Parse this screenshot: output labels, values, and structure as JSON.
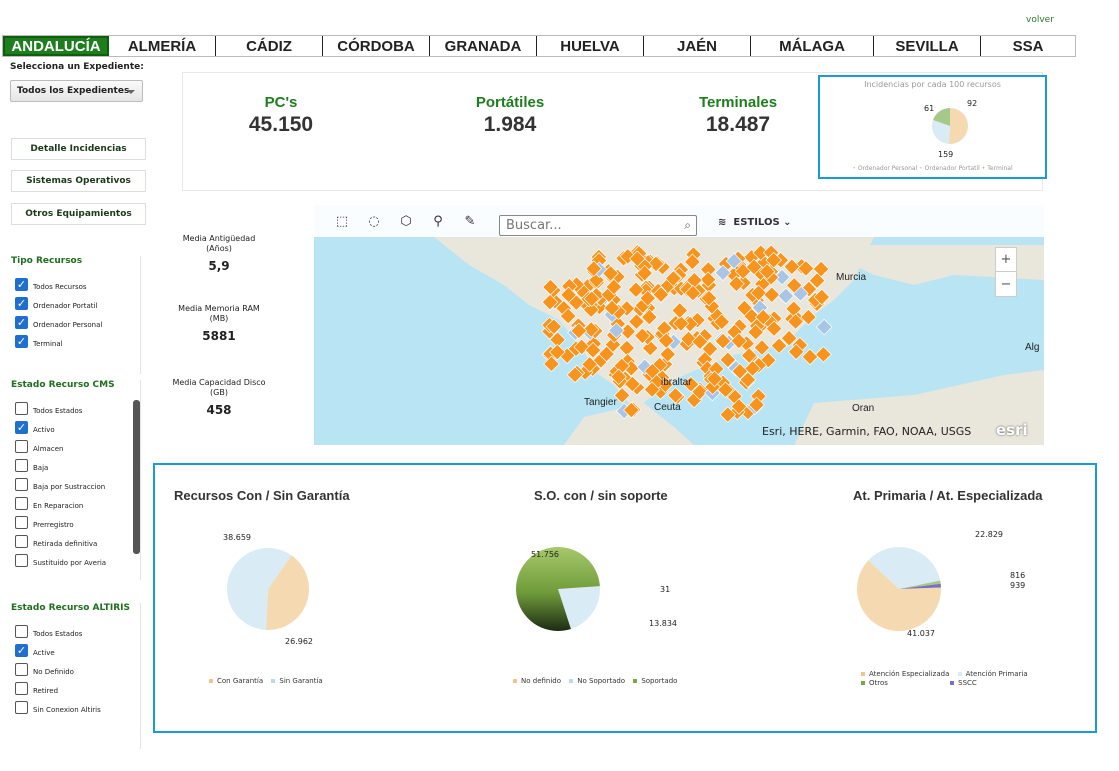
{
  "header": {
    "volver": "volver"
  },
  "tabs": [
    {
      "label": "ANDALUCÍA",
      "active": true
    },
    {
      "label": "ALMERÍA"
    },
    {
      "label": "CÁDIZ"
    },
    {
      "label": "CÓRDOBA"
    },
    {
      "label": "GRANADA"
    },
    {
      "label": "HUELVA"
    },
    {
      "label": "JAÉN"
    },
    {
      "label": "MÁLAGA"
    },
    {
      "label": "SEVILLA"
    },
    {
      "label": "SSA"
    }
  ],
  "sidebar": {
    "expediente_label": "Selecciona un Expediente:",
    "expediente_value": "Todos los Expedientes",
    "buttons": [
      "Detalle Incidencias",
      "Sistemas Operativos",
      "Otros Equipamientos"
    ],
    "tipo_recursos": {
      "title": "Tipo Recursos",
      "options": [
        {
          "label": "Todos Recursos",
          "checked": true
        },
        {
          "label": "Ordenador Portatil",
          "checked": true
        },
        {
          "label": "Ordenador Personal",
          "checked": true
        },
        {
          "label": "Terminal",
          "checked": true
        }
      ]
    },
    "estado_cms": {
      "title": "Estado Recurso CMS",
      "options": [
        {
          "label": "Todos Estados",
          "checked": false
        },
        {
          "label": "Activo",
          "checked": true
        },
        {
          "label": "Almacen",
          "checked": false
        },
        {
          "label": "Baja",
          "checked": false
        },
        {
          "label": "Baja por Sustraccion",
          "checked": false
        },
        {
          "label": "En Reparacion",
          "checked": false
        },
        {
          "label": "Prerregistro",
          "checked": false
        },
        {
          "label": "Retirada definitiva",
          "checked": false
        },
        {
          "label": "Sustituido por Averia",
          "checked": false
        }
      ]
    },
    "estado_altiris": {
      "title": "Estado Recurso ALTIRIS",
      "options": [
        {
          "label": "Todos Estados",
          "checked": false
        },
        {
          "label": "Active",
          "checked": true
        },
        {
          "label": "No Definido",
          "checked": false
        },
        {
          "label": "Retired",
          "checked": false
        },
        {
          "label": "Sin Conexion Altiris",
          "checked": false
        }
      ]
    }
  },
  "kpis": [
    {
      "label": "PC's",
      "value": "45.150"
    },
    {
      "label": "Portátiles",
      "value": "1.984"
    },
    {
      "label": "Terminales",
      "value": "18.487"
    }
  ],
  "stats": [
    {
      "label_1": "Media Antigüedad",
      "label_2": "(Años)",
      "value": "5,9"
    },
    {
      "label_1": "Media Memoria RAM",
      "label_2": "(MB)",
      "value": "5881"
    },
    {
      "label_1": "Media Capacidad Disco",
      "label_2": "(GB)",
      "value": "458"
    }
  ],
  "map": {
    "search_placeholder": "Buscar...",
    "estilos": "ESTILOS",
    "zoom_in": "+",
    "zoom_out": "−",
    "attribution": "Esri, HERE, Garmin, FAO, NOAA, USGS",
    "esri_logo": "esri",
    "places": [
      "Murcia",
      "Alg",
      "Tangier",
      "Ceuta",
      "Oran",
      "ibraltar"
    ],
    "colors": {
      "marker": "#f7941d",
      "marker_alt": "#a8c5e6",
      "water": "#b8e4f4",
      "land": "#e8e4da"
    }
  },
  "chart_data": [
    {
      "type": "pie",
      "title": "Incidencias por cada 100 recursos",
      "categories": [
        "Ordenador Personal",
        "Ordenador Portatil",
        "Terminal"
      ],
      "values": [
        159,
        92,
        61
      ],
      "value_labels": [
        "159",
        "92",
        "61"
      ],
      "colors": [
        "#f5d9b0",
        "#d9ecf5",
        "#a5c98b"
      ]
    },
    {
      "type": "pie",
      "title": "Recursos Con / Sin Garantía",
      "categories": [
        "Con Garantía",
        "Sin Garantía"
      ],
      "values": [
        26962,
        38659
      ],
      "value_labels": [
        "26.962",
        "38.659"
      ],
      "colors": [
        "#f5d9b0",
        "#d9ecf5"
      ]
    },
    {
      "type": "pie",
      "title": "S.O. con / sin soporte",
      "categories": [
        "No definido",
        "No Soportado",
        "Soportado"
      ],
      "values": [
        31,
        13834,
        51756
      ],
      "value_labels": [
        "31",
        "13.834",
        "51.756"
      ],
      "colors": [
        "#f5d9b0",
        "#d9ecf5",
        "#7aa843"
      ]
    },
    {
      "type": "pie",
      "title": "At. Primaria / At. Especializada",
      "categories": [
        "Atención Especializada",
        "Atención Primaria",
        "Otros",
        "SSCC"
      ],
      "values": [
        41037,
        22829,
        816,
        939
      ],
      "value_labels": [
        "41.037",
        "22.829",
        "816",
        "939"
      ],
      "colors": [
        "#f5d9b0",
        "#d9ecf5",
        "#a5c98b",
        "#7d6fbf"
      ]
    }
  ]
}
